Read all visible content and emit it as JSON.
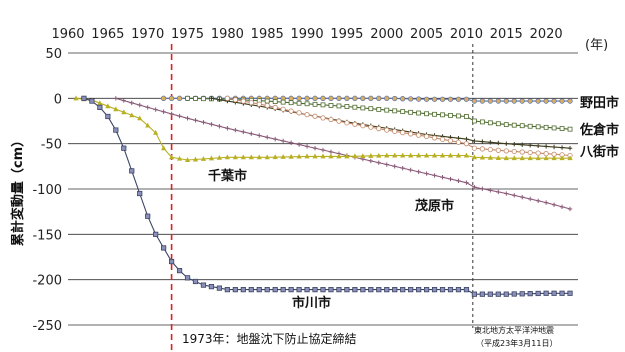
{
  "chart_data": {
    "type": "line",
    "ylabel": "累計変動量（cm）",
    "xunit_label": "(年)",
    "xlim": [
      1960,
      2024
    ],
    "ylim": [
      -250,
      50
    ],
    "xticks": [
      "1960",
      "1965",
      "1970",
      "1975",
      "1980",
      "1985",
      "1990",
      "1995",
      "2000",
      "2005",
      "2010",
      "2015",
      "2020"
    ],
    "yticks": [
      "50",
      "0",
      "-50",
      "-100",
      "-150",
      "-200",
      "-250"
    ],
    "annotations": {
      "agreement": "1973年：地盤沈下防止協定締結",
      "agreement_year": 1973,
      "quake_line1": "東北地方太平洋沖地震",
      "quake_line2": "（平成23年3月11日）",
      "quake_year": 2011
    },
    "series": [
      {
        "name": "野田市",
        "color": "#5a6fa8",
        "x": [
          1972,
          1975,
          1980,
          1985,
          1990,
          1995,
          2000,
          2005,
          2010,
          2011,
          2015,
          2020,
          2023
        ],
        "y": [
          0,
          0,
          0,
          0,
          0,
          0,
          0,
          -1,
          -1,
          -3,
          -3,
          -3,
          -3
        ]
      },
      {
        "name": "佐倉市",
        "color": "#4f6b2e",
        "x": [
          1975,
          1980,
          1985,
          1990,
          1995,
          2000,
          2005,
          2010,
          2011,
          2015,
          2020,
          2023
        ],
        "y": [
          0,
          -1,
          -3,
          -6,
          -9,
          -13,
          -17,
          -20,
          -25,
          -29,
          -32,
          -34
        ]
      },
      {
        "name": "八街市",
        "color": "#3b3b1e",
        "x": [
          1978,
          1980,
          1985,
          1990,
          1995,
          2000,
          2005,
          2010,
          2011,
          2015,
          2020,
          2023
        ],
        "y": [
          0,
          -3,
          -10,
          -18,
          -26,
          -33,
          -40,
          -45,
          -47,
          -50,
          -53,
          -55
        ]
      },
      {
        "name": "",
        "color": "#c48a6a",
        "x": [
          1980,
          1985,
          1990,
          1995,
          2000,
          2005,
          2010,
          2011,
          2015,
          2020,
          2023
        ],
        "y": [
          0,
          -8,
          -18,
          -27,
          -35,
          -42,
          -50,
          -55,
          -58,
          -61,
          -63
        ]
      },
      {
        "name": "茂原市",
        "color": "#8a5a78",
        "x": [
          1966,
          1970,
          1975,
          1980,
          1985,
          1990,
          1995,
          2000,
          2005,
          2010,
          2011,
          2015,
          2020,
          2023
        ],
        "y": [
          0,
          -10,
          -22,
          -33,
          -43,
          -53,
          -63,
          -73,
          -83,
          -93,
          -98,
          -105,
          -115,
          -122
        ]
      },
      {
        "name": "千葉市",
        "color": "#b8b022",
        "x": [
          1961,
          1963,
          1966,
          1969,
          1971,
          1972,
          1973,
          1975,
          1980,
          1985,
          1990,
          1995,
          2000,
          2005,
          2010,
          2011,
          2015,
          2020,
          2023
        ],
        "y": [
          0,
          -2,
          -12,
          -22,
          -38,
          -55,
          -65,
          -68,
          -65,
          -65,
          -64,
          -64,
          -63,
          -63,
          -63,
          -65,
          -66,
          -66,
          -66
        ]
      },
      {
        "name": "市川市",
        "color": "#3c4466",
        "x": [
          1962,
          1963,
          1964,
          1965,
          1966,
          1967,
          1968,
          1969,
          1970,
          1971,
          1972,
          1973,
          1974,
          1975,
          1977,
          1980,
          1985,
          1990,
          1995,
          2000,
          2005,
          2010,
          2011,
          2015,
          2020,
          2023
        ],
        "y": [
          0,
          -3,
          -10,
          -20,
          -35,
          -55,
          -80,
          -105,
          -130,
          -150,
          -165,
          -180,
          -190,
          -198,
          -206,
          -211,
          -211,
          -211,
          -211,
          -211,
          -211,
          -211,
          -216,
          -216,
          -215,
          -215
        ]
      }
    ]
  }
}
